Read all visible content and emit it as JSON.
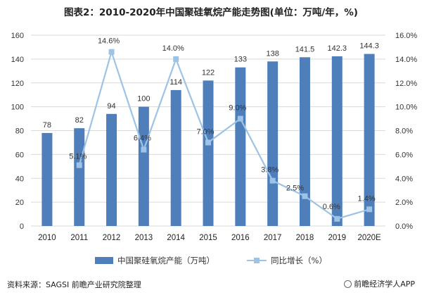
{
  "title": "图表2：2010-2020年中国聚硅氧烷产能走势图(单位：万吨/年，%)",
  "source": "资料来源：SAGSI 前瞻产业研究院整理",
  "brand": "前瞻经济学人APP",
  "colors": {
    "bar": "#4f7fba",
    "line": "#9dc3e6",
    "grid": "#d9d9d9"
  },
  "chart_data": {
    "type": "bar",
    "title": "图表2：2010-2020年中国聚硅氧烷产能走势图(单位：万吨/年，%)",
    "categories": [
      "2010",
      "2011",
      "2012",
      "2013",
      "2014",
      "2015",
      "2016",
      "2017",
      "2018",
      "2019",
      "2020E"
    ],
    "series": [
      {
        "name": "中国聚硅氧烷产能（万吨）",
        "type": "bar",
        "axis": "left",
        "values": [
          78,
          82,
          94,
          100,
          114,
          122,
          133,
          138,
          141.5,
          142.3,
          144.3
        ],
        "labels": [
          "78",
          "82",
          "94",
          "100",
          "114",
          "122",
          "133",
          "138",
          "141.5",
          "142.3",
          "144.3"
        ]
      },
      {
        "name": "同比增长（%）",
        "type": "line",
        "axis": "right",
        "values": [
          null,
          5.1,
          14.6,
          6.4,
          14.0,
          7.0,
          9.0,
          3.8,
          2.5,
          0.6,
          1.4
        ],
        "labels": [
          "",
          "5.1%",
          "14.6%",
          "6.4%",
          "14.0%",
          "7.0%",
          "9.0%",
          "3.8%",
          "2.5%",
          "0.6%",
          "1.4%"
        ]
      }
    ],
    "y_left": {
      "lim": [
        0,
        160
      ],
      "ticks": [
        "0",
        "20",
        "40",
        "60",
        "80",
        "100",
        "120",
        "140",
        "160"
      ]
    },
    "y_right": {
      "lim": [
        0,
        16
      ],
      "ticks": [
        "0.0%",
        "2.0%",
        "4.0%",
        "6.0%",
        "8.0%",
        "10.0%",
        "12.0%",
        "14.0%",
        "16.0%"
      ]
    },
    "grid": true,
    "legend": "bottom"
  }
}
